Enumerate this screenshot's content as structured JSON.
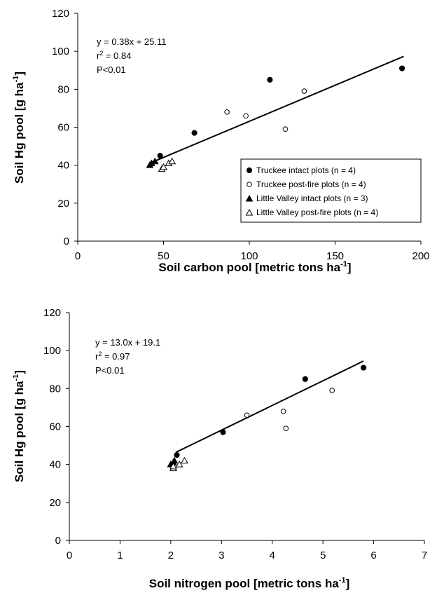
{
  "chart_data": [
    {
      "type": "scatter",
      "title": "",
      "xlabel": "Soil carbon pool [metric tons ha",
      "xlabel_sup": "-1",
      "xlabel_end": "]",
      "ylabel": "Soil Hg pool [g ha",
      "ylabel_sup": "-1",
      "ylabel_end": "]",
      "xlim": [
        0,
        200
      ],
      "ylim": [
        0,
        120
      ],
      "xticks": [
        "0",
        "50",
        "100",
        "150",
        "200"
      ],
      "yticks": [
        "0",
        "20",
        "40",
        "60",
        "80",
        "100",
        "120"
      ],
      "grid": false,
      "annotation": {
        "line1": "y = 0.38x + 25.11",
        "line2_pre": "r",
        "line2_sup": "2",
        "line2_post": " = 0.84",
        "line3": "P<0.01"
      },
      "legend": {
        "placement": "bottom-right",
        "entries": [
          "Truckee intact plots (n = 4)",
          "Truckee post-fire plots (n = 4)",
          "Little Valley intact plots (n = 3)",
          "Little Valley post-fire plots (n = 4)"
        ]
      },
      "regression": {
        "slope": 0.38,
        "intercept": 25.11,
        "x_range": [
          42,
          190
        ]
      },
      "series": [
        {
          "name": "Truckee intact plots (n = 4)",
          "marker": "circle",
          "filled": true,
          "x": [
            48,
            68,
            112,
            189
          ],
          "y": [
            45,
            57,
            85,
            91
          ]
        },
        {
          "name": "Truckee post-fire plots (n = 4)",
          "marker": "circle",
          "filled": false,
          "x": [
            87,
            98,
            121,
            132
          ],
          "y": [
            68,
            66,
            59,
            79
          ]
        },
        {
          "name": "Little Valley intact plots (n = 3)",
          "marker": "triangle",
          "filled": true,
          "x": [
            42,
            43,
            45
          ],
          "y": [
            40,
            41,
            42
          ]
        },
        {
          "name": "Little Valley post-fire plots (n = 4)",
          "marker": "triangle",
          "filled": false,
          "x": [
            49,
            50,
            53,
            55
          ],
          "y": [
            38,
            39,
            41,
            42
          ]
        }
      ]
    },
    {
      "type": "scatter",
      "title": "",
      "xlabel": "Soil nitrogen pool [metric tons ha",
      "xlabel_sup": "-1",
      "xlabel_end": "]",
      "ylabel": "Soil Hg pool [g ha",
      "ylabel_sup": "-1",
      "ylabel_end": "]",
      "xlim": [
        0,
        7
      ],
      "ylim": [
        0,
        120
      ],
      "xticks": [
        "0",
        "1",
        "2",
        "3",
        "4",
        "5",
        "6",
        "7"
      ],
      "yticks": [
        "0",
        "20",
        "40",
        "60",
        "80",
        "100",
        "120"
      ],
      "grid": false,
      "annotation": {
        "line1": "y = 13.0x + 19.1",
        "line2_pre": "r",
        "line2_sup": "2",
        "line2_post": " = 0.97",
        "line3": "P<0.01"
      },
      "regression": {
        "slope": 13.0,
        "intercept": 19.1,
        "x_range": [
          2.1,
          5.8
        ]
      },
      "series": [
        {
          "name": "Truckee intact plots (n = 4)",
          "marker": "circle",
          "filled": true,
          "x": [
            2.12,
            3.03,
            4.65,
            5.8
          ],
          "y": [
            45,
            57,
            85,
            91
          ]
        },
        {
          "name": "Truckee post-fire plots (n = 4)",
          "marker": "circle",
          "filled": false,
          "x": [
            3.5,
            4.22,
            4.27,
            5.18
          ],
          "y": [
            66,
            68,
            59,
            79
          ]
        },
        {
          "name": "Little Valley intact plots (n = 3)",
          "marker": "triangle",
          "filled": true,
          "x": [
            2.0,
            2.05,
            2.07
          ],
          "y": [
            40,
            41,
            42
          ]
        },
        {
          "name": "Little Valley post-fire plots (n = 4)",
          "marker": "triangle",
          "filled": false,
          "x": [
            2.05,
            2.17,
            2.27,
            2.05
          ],
          "y": [
            38,
            40,
            42,
            39
          ]
        }
      ]
    }
  ]
}
